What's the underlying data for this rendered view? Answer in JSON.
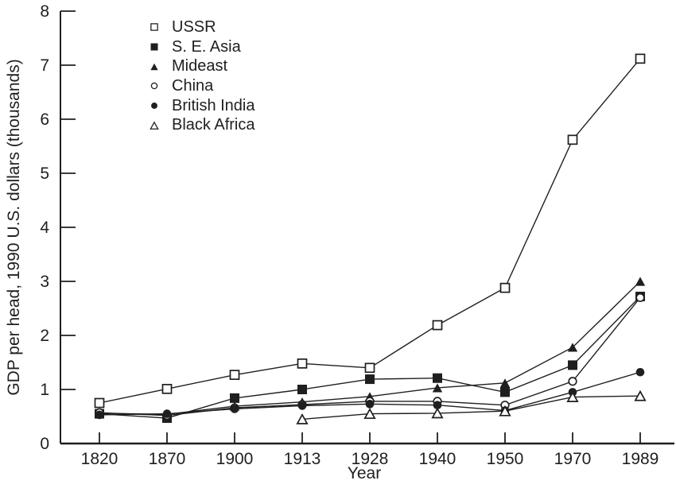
{
  "figure": {
    "background": "#ffffff",
    "ink_color": "#1f1f1f"
  },
  "chart_data": {
    "type": "line",
    "title": "",
    "xlabel": "Year",
    "ylabel": "GDP per head, 1990 U.S. dollars (thousands)",
    "categories": [
      "1820",
      "1870",
      "1900",
      "1913",
      "1928",
      "1940",
      "1950",
      "1970",
      "1989"
    ],
    "ylim": [
      0,
      8
    ],
    "yticks": [
      0,
      1,
      2,
      3,
      4,
      5,
      6,
      7,
      8
    ],
    "grid": false,
    "legend_position": "top-left-inside",
    "series": [
      {
        "name": "USSR",
        "marker": "open-square",
        "values": [
          0.75,
          1.01,
          1.27,
          1.48,
          1.4,
          2.19,
          2.88,
          5.62,
          7.12
        ]
      },
      {
        "name": "S. E. Asia",
        "marker": "filled-square",
        "values": [
          0.55,
          0.47,
          0.84,
          1.0,
          1.19,
          1.21,
          0.95,
          1.45,
          2.72
        ]
      },
      {
        "name": "Mideast",
        "marker": "filled-triangle",
        "values": [
          0.56,
          0.54,
          0.69,
          0.77,
          0.87,
          1.03,
          1.12,
          1.78,
          3.0
        ]
      },
      {
        "name": "China",
        "marker": "open-circle",
        "values": [
          0.57,
          0.52,
          0.66,
          0.72,
          0.78,
          0.78,
          0.71,
          1.15,
          2.7
        ]
      },
      {
        "name": "British India",
        "marker": "filled-circle",
        "values": [
          0.53,
          0.55,
          0.64,
          0.7,
          0.73,
          0.71,
          0.61,
          0.95,
          1.32
        ]
      },
      {
        "name": "Black Africa",
        "marker": "open-triangle",
        "values": [
          null,
          null,
          null,
          0.45,
          0.55,
          0.56,
          0.6,
          0.86,
          0.88
        ]
      }
    ]
  }
}
